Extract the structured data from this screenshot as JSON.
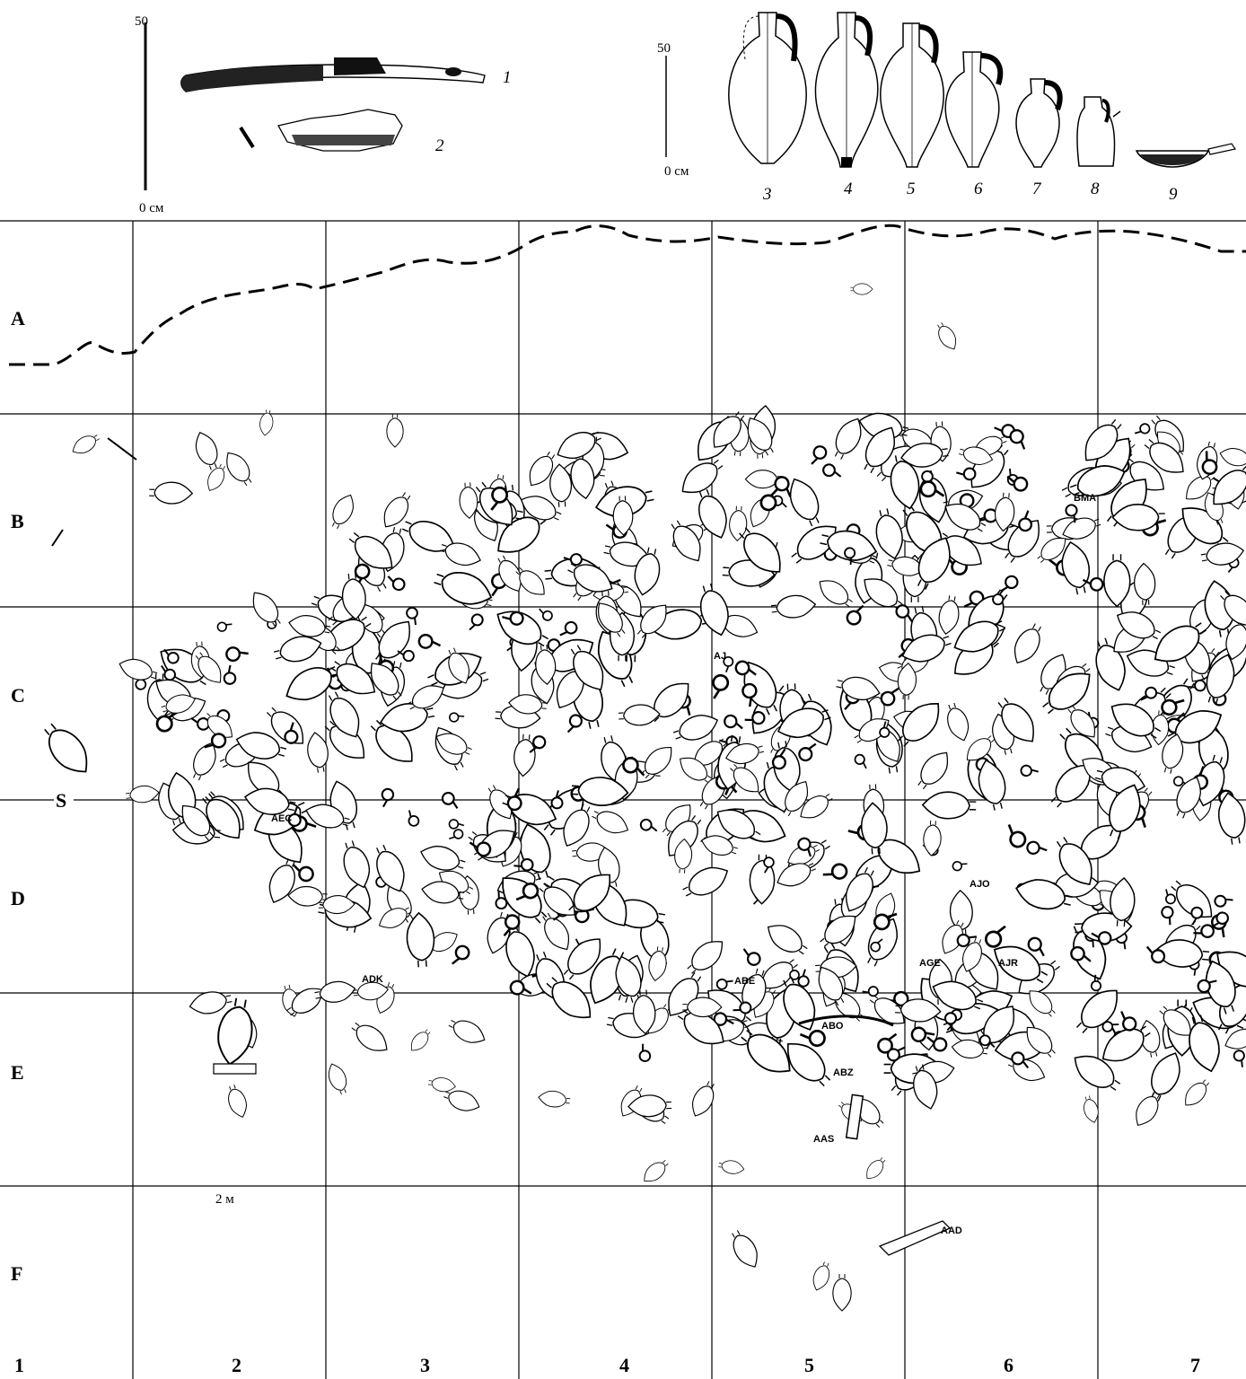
{
  "scale_top_left": {
    "max": "50",
    "min": "0 см"
  },
  "scale_top_right": {
    "max": "50",
    "min": "0 см"
  },
  "scale_grid": {
    "label": "2 м"
  },
  "figure_numbers": [
    "1",
    "2",
    "3",
    "4",
    "5",
    "6",
    "7",
    "8",
    "9"
  ],
  "rows": [
    "A",
    "B",
    "C",
    "D",
    "E",
    "F"
  ],
  "columns": [
    "1",
    "2",
    "3",
    "4",
    "5",
    "6",
    "7"
  ],
  "section_marker": "S",
  "find_codes": [
    "BMA",
    "AEC",
    "ADK",
    "ABE",
    "ABO",
    "ABZ",
    "AAS",
    "AGE",
    "AJO",
    "AJR",
    "AAD",
    "AJ"
  ],
  "icons": [
    "amphora-icon",
    "bowl-icon",
    "wood-plank-icon",
    "anchor-stock-icon"
  ],
  "colors": {
    "ink": "#000000",
    "paper": "#ffffff"
  }
}
